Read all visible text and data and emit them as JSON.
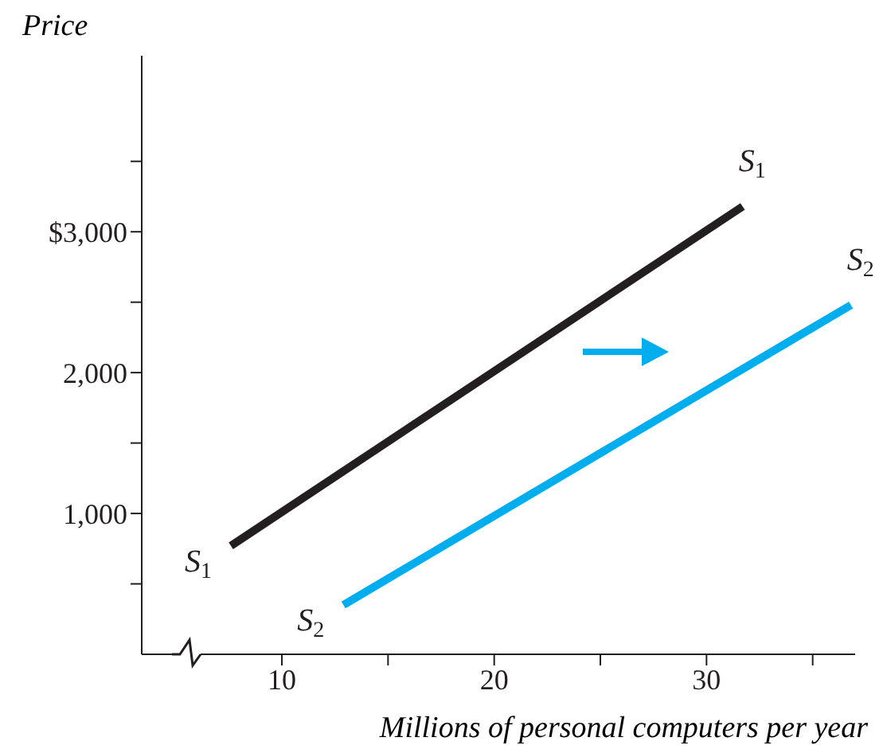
{
  "chart_data": {
    "type": "line",
    "ylabel": "Price",
    "xlabel": "Millions of personal computers per year",
    "xlim": [
      3.4,
      37
    ],
    "xticks": [
      10,
      {
        "value": 15,
        "label": null
      },
      20,
      {
        "value": 25,
        "label": null
      },
      30,
      {
        "value": 35,
        "label": null
      }
    ],
    "ylim": [
      0,
      4250
    ],
    "yticks": [
      {
        "value": 500,
        "label": null
      },
      {
        "value": 1000,
        "label": "1,000"
      },
      {
        "value": 1500,
        "label": null
      },
      {
        "value": 2000,
        "label": "2,000"
      },
      {
        "value": 2500,
        "label": null
      },
      {
        "value": 3000,
        "label": "$3,000"
      },
      {
        "value": 3500,
        "label": null
      }
    ],
    "series": [
      {
        "color": "#231f20",
        "x": [
          7.6,
          31.7
        ],
        "values": [
          770,
          3180
        ]
      },
      {
        "color": "#00aeef",
        "x": [
          12.9,
          36.8
        ],
        "values": [
          350,
          2480
        ]
      }
    ],
    "annotations": [
      {
        "text": "S$_{1}$",
        "x": 7.6,
        "y": 770
      },
      {
        "text": "S$_{1}$",
        "x": 31.7,
        "y": 3180
      },
      {
        "text": "S$_{2}$",
        "x": 12.9,
        "y": 350
      },
      {
        "text": "S$_{2}$",
        "x": 36.8,
        "y": 2480
      }
    ],
    "grid": false,
    "legend": false,
    "marker": "none",
    "line_style": "solid"
  }
}
